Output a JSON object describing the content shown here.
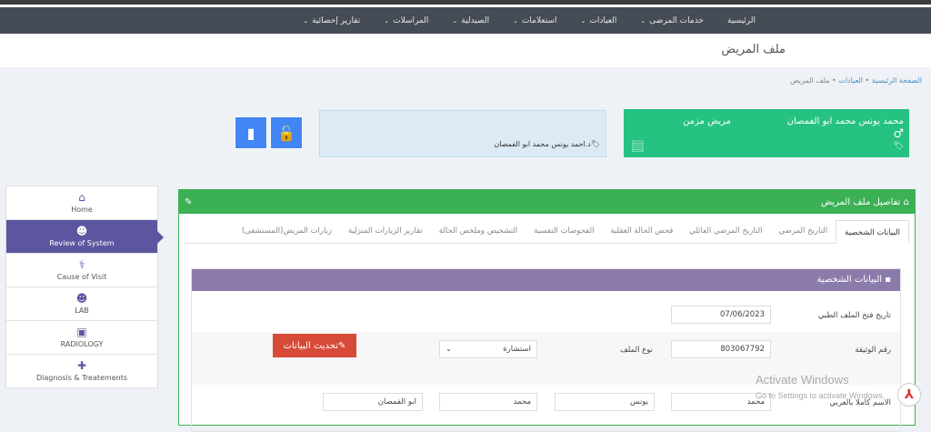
{
  "nav": {
    "items": [
      {
        "label": "الرئيسية",
        "dropdown": false
      },
      {
        "label": "خدمات المرضى",
        "dropdown": true
      },
      {
        "label": "العيادات",
        "dropdown": true
      },
      {
        "label": "استعلامات",
        "dropdown": true
      },
      {
        "label": "الصيدلية",
        "dropdown": true
      },
      {
        "label": "المراسلات",
        "dropdown": true
      },
      {
        "label": "تقارير إحصائية",
        "dropdown": true
      }
    ]
  },
  "header": {
    "title": "ملف المريض"
  },
  "breadcrumb": [
    "الصفحة الرئيسية",
    "العيادات",
    "ملف المريض"
  ],
  "patient": {
    "name": "محمد يونس محمد ابو الفمصان",
    "type": "مريض مزمن",
    "gender_icon": "male-icon",
    "color": "#26c281"
  },
  "doctor": {
    "name": "د.احمد يونس محمد ابو الفمصان"
  },
  "sidebar": {
    "items": [
      {
        "label": "Home",
        "icon": "home-icon",
        "glyph": "⌂"
      },
      {
        "label": "Review of System",
        "icon": "doctor-icon",
        "glyph": "☻",
        "active": true
      },
      {
        "label": "Cause of Visit",
        "icon": "stethoscope-icon",
        "glyph": "⚕"
      },
      {
        "label": "LAB",
        "icon": "doctor-icon",
        "glyph": "☻"
      },
      {
        "label": "RADIOLOGY",
        "icon": "image-icon",
        "glyph": "▣"
      },
      {
        "label": "Diagnosis & Treatements",
        "icon": "medkit-icon",
        "glyph": "✚"
      }
    ]
  },
  "panel": {
    "title": "تفاصيل ملف المريض",
    "tabs": [
      "البيانات الشخصية",
      "التاريخ المرضي",
      "التاريخ المرضي العائلي",
      "فحص الحالة العقلية",
      "الفحوصات النفسية",
      "التشخيص وملخص الحالة",
      "تقارير الزيارات المنزلية",
      "زيارات المريض(المستشفى)"
    ]
  },
  "section": {
    "title": "البيانات الشخصية",
    "open_date_label": "تاريخ فتح الملف الطبي",
    "open_date": "07/06/2023",
    "doc_no_label": "رقم الوثيقة",
    "doc_no": "803067792",
    "file_type_label": "نوع الملف",
    "file_type": "استشارة",
    "update_button": "تحديث البيانات",
    "full_name_label": "الاسم كاملا بالعربي",
    "name_parts": [
      "محمد",
      "يونس",
      "محمد",
      "ابو الفمصان"
    ]
  },
  "watermark": {
    "line1": "Activate Windows",
    "line2": "Go to Settings to activate Windows."
  }
}
